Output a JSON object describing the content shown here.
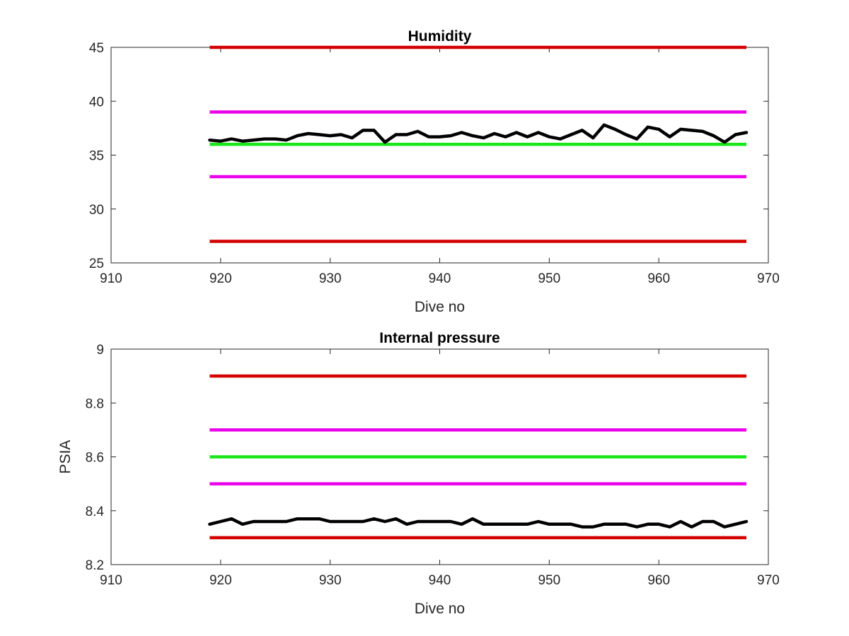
{
  "chart_data": [
    {
      "type": "line",
      "title": "Humidity",
      "xlabel": "Dive no",
      "ylabel": "",
      "xlim": [
        910,
        970
      ],
      "ylim": [
        25,
        45
      ],
      "xticks": [
        910,
        920,
        930,
        940,
        950,
        960,
        970
      ],
      "yticks": [
        25,
        30,
        35,
        40,
        45
      ],
      "xtick_labels": [
        "910",
        "920",
        "930",
        "940",
        "950",
        "960",
        "970"
      ],
      "ytick_labels": [
        "25",
        "30",
        "35",
        "40",
        "45"
      ],
      "grid": false,
      "limit_lines": [
        {
          "y": 45,
          "color": "#d40000",
          "x": [
            919,
            968
          ]
        },
        {
          "y": 39,
          "color": "#ea00ea",
          "x": [
            919,
            968
          ]
        },
        {
          "y": 36,
          "color": "#19e619",
          "x": [
            919,
            968
          ]
        },
        {
          "y": 33,
          "color": "#ea00ea",
          "x": [
            919,
            968
          ]
        },
        {
          "y": 27,
          "color": "#d40000",
          "x": [
            919,
            968
          ]
        }
      ],
      "series": [
        {
          "color": "#000000",
          "x": [
            919,
            920,
            921,
            922,
            923,
            924,
            925,
            926,
            927,
            928,
            929,
            930,
            931,
            932,
            933,
            934,
            935,
            936,
            937,
            938,
            939,
            940,
            941,
            942,
            943,
            944,
            945,
            946,
            947,
            948,
            949,
            950,
            951,
            952,
            953,
            954,
            955,
            956,
            957,
            958,
            959,
            960,
            961,
            962,
            963,
            964,
            965,
            966,
            967,
            968
          ],
          "values": [
            36.4,
            36.3,
            36.5,
            36.3,
            36.4,
            36.5,
            36.5,
            36.4,
            36.8,
            37.0,
            36.9,
            36.8,
            36.9,
            36.6,
            37.3,
            37.3,
            36.2,
            36.9,
            36.9,
            37.2,
            36.7,
            36.7,
            36.8,
            37.1,
            36.8,
            36.6,
            37.0,
            36.7,
            37.1,
            36.7,
            37.1,
            36.7,
            36.5,
            36.9,
            37.3,
            36.6,
            37.8,
            37.4,
            36.9,
            36.5,
            37.6,
            37.4,
            36.7,
            37.4,
            37.3,
            37.2,
            36.8,
            36.2,
            36.9,
            37.1
          ]
        }
      ]
    },
    {
      "type": "line",
      "title": "Internal pressure",
      "xlabel": "Dive no",
      "ylabel": "PSIA",
      "xlim": [
        910,
        970
      ],
      "ylim": [
        8.2,
        9.0
      ],
      "xticks": [
        910,
        920,
        930,
        940,
        950,
        960,
        970
      ],
      "yticks": [
        8.2,
        8.4,
        8.6,
        8.8,
        9.0
      ],
      "xtick_labels": [
        "910",
        "920",
        "930",
        "940",
        "950",
        "960",
        "970"
      ],
      "ytick_labels": [
        "8.2",
        "8.4",
        "8.6",
        "8.8",
        "9"
      ],
      "grid": false,
      "limit_lines": [
        {
          "y": 8.9,
          "color": "#d40000",
          "x": [
            919,
            968
          ]
        },
        {
          "y": 8.7,
          "color": "#ea00ea",
          "x": [
            919,
            968
          ]
        },
        {
          "y": 8.6,
          "color": "#19e619",
          "x": [
            919,
            968
          ]
        },
        {
          "y": 8.5,
          "color": "#ea00ea",
          "x": [
            919,
            968
          ]
        },
        {
          "y": 8.3,
          "color": "#d40000",
          "x": [
            919,
            968
          ]
        }
      ],
      "series": [
        {
          "color": "#000000",
          "x": [
            919,
            920,
            921,
            922,
            923,
            924,
            925,
            926,
            927,
            928,
            929,
            930,
            931,
            932,
            933,
            934,
            935,
            936,
            937,
            938,
            939,
            940,
            941,
            942,
            943,
            944,
            945,
            946,
            947,
            948,
            949,
            950,
            951,
            952,
            953,
            954,
            955,
            956,
            957,
            958,
            959,
            960,
            961,
            962,
            963,
            964,
            965,
            966,
            967,
            968
          ],
          "values": [
            8.35,
            8.36,
            8.37,
            8.35,
            8.36,
            8.36,
            8.36,
            8.36,
            8.37,
            8.37,
            8.37,
            8.36,
            8.36,
            8.36,
            8.36,
            8.37,
            8.36,
            8.37,
            8.35,
            8.36,
            8.36,
            8.36,
            8.36,
            8.35,
            8.37,
            8.35,
            8.35,
            8.35,
            8.35,
            8.35,
            8.36,
            8.35,
            8.35,
            8.35,
            8.34,
            8.34,
            8.35,
            8.35,
            8.35,
            8.34,
            8.35,
            8.35,
            8.34,
            8.36,
            8.34,
            8.36,
            8.36,
            8.34,
            8.35,
            8.36
          ]
        }
      ]
    }
  ]
}
